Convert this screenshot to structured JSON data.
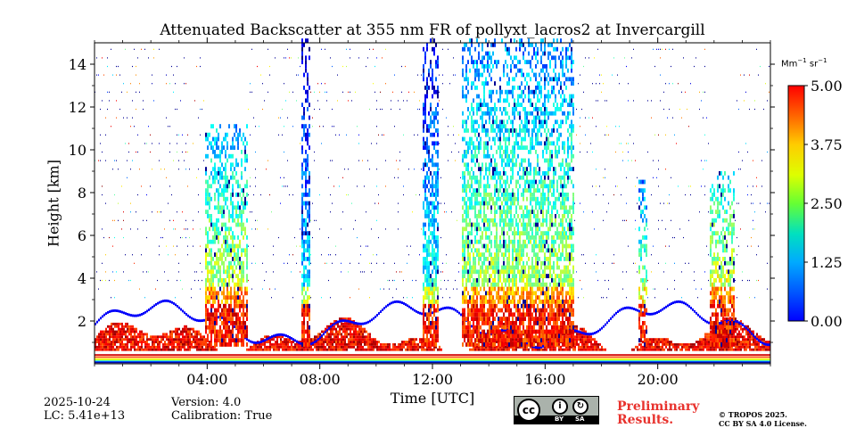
{
  "chart_data": {
    "type": "heatmap",
    "title": "Attenuated Backscatter at 355 nm FR of pollyxt_lacros2 at Invercargill",
    "xlabel": "Time [UTC]",
    "ylabel": "Height [km]",
    "x_ticks": [
      "04:00",
      "08:00",
      "12:00",
      "16:00",
      "20:00"
    ],
    "x_tick_hours": [
      4,
      8,
      12,
      16,
      20
    ],
    "xlim_hours": [
      0,
      24
    ],
    "y_ticks": [
      "2",
      "4",
      "6",
      "8",
      "10",
      "12",
      "14"
    ],
    "y_tick_values": [
      2,
      4,
      6,
      8,
      10,
      12,
      14
    ],
    "ylim_km": [
      0,
      15
    ],
    "colorbar": {
      "label": "Mm",
      "label_exp1": "−1",
      "label_mid": " sr",
      "label_exp2": "−1",
      "ticks": [
        "0.00",
        "1.25",
        "2.50",
        "3.75",
        "5.00"
      ],
      "range": [
        0,
        5
      ],
      "colormap": "jet"
    },
    "cloud_columns": [
      {
        "start_h": 3.9,
        "end_h": 5.4,
        "top_km": 11,
        "intensity": 0.55
      },
      {
        "start_h": 7.3,
        "end_h": 7.6,
        "top_km": 15,
        "intensity": 0.3
      },
      {
        "start_h": 11.6,
        "end_h": 12.2,
        "top_km": 15,
        "intensity": 0.35
      },
      {
        "start_h": 13.0,
        "end_h": 17.0,
        "top_km": 15,
        "intensity": 0.5
      },
      {
        "start_h": 19.3,
        "end_h": 19.6,
        "top_km": 8.5,
        "intensity": 0.5
      },
      {
        "start_h": 21.8,
        "end_h": 22.7,
        "top_km": 9,
        "intensity": 0.6
      }
    ]
  },
  "footer": {
    "date": "2025-10-24",
    "lc": "LC: 5.41e+13",
    "version": "Version: 4.0",
    "calibration": "Calibration: True",
    "license_badge": {
      "cc": "cc",
      "by": "BY",
      "sa": "SA"
    },
    "preliminary_line1": "Preliminary",
    "preliminary_line2": "Results.",
    "copyright_line1": "© TROPOS 2025.",
    "copyright_line2": "CC BY SA 4.0 License."
  }
}
